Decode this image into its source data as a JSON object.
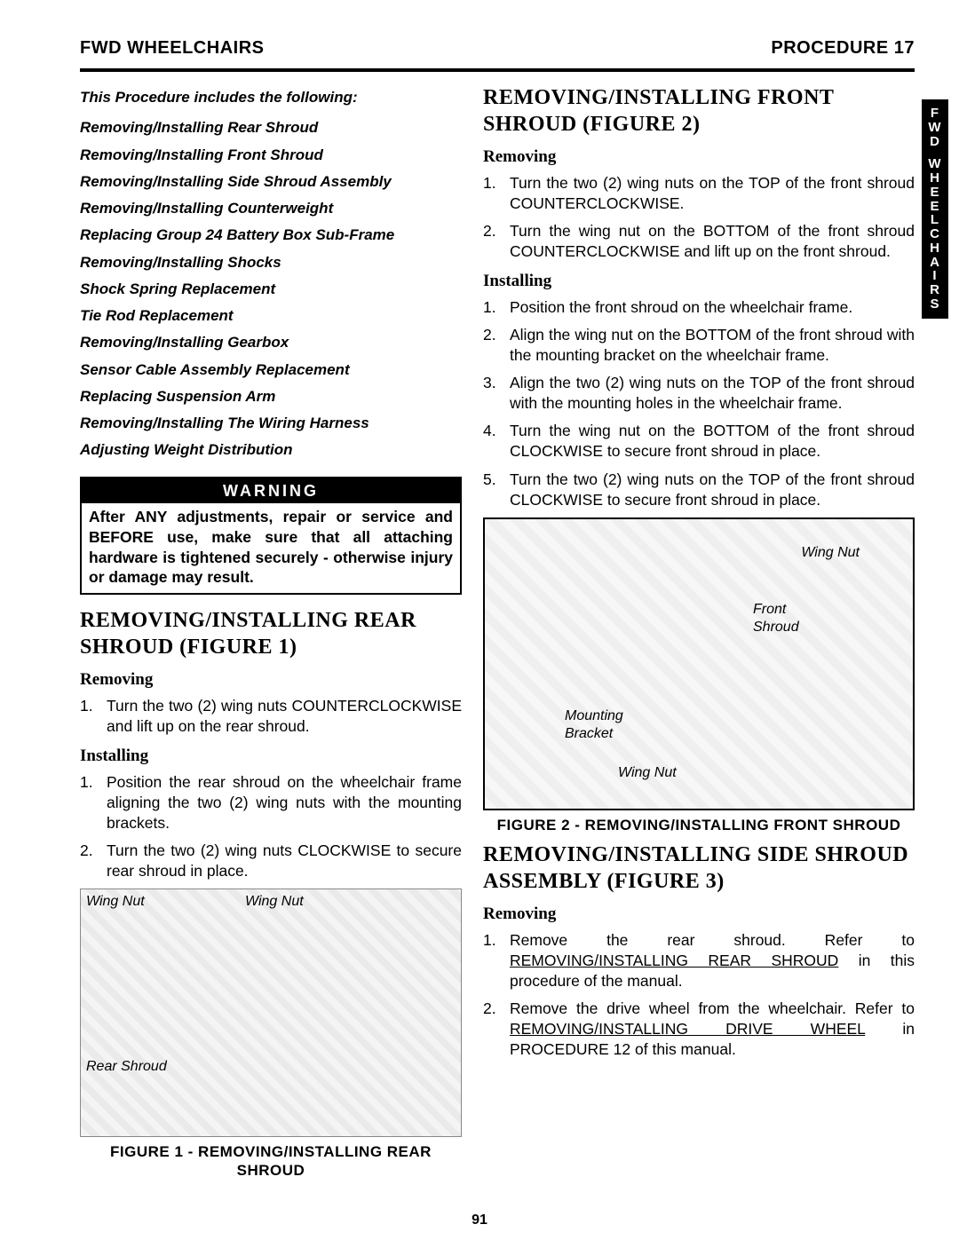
{
  "header": {
    "left": "Fwd Wheelchairs",
    "right": "Procedure 17"
  },
  "side_tab": {
    "line1": "FWD",
    "line2": "WHEELCHAIRS"
  },
  "toc": {
    "heading": "This Procedure includes the following:",
    "items": [
      "Removing/Installing Rear Shroud",
      "Removing/Installing Front Shroud",
      "Removing/Installing Side Shroud Assembly",
      "Removing/Installing Counterweight",
      "Replacing Group 24 Battery Box Sub-Frame",
      "Removing/Installing Shocks",
      "Shock Spring Replacement",
      "Tie Rod Replacement",
      "Removing/Installing Gearbox",
      "Sensor Cable Assembly Replacement",
      "Replacing Suspension Arm",
      "Removing/Installing The Wiring Harness",
      "Adjusting Weight Distribution"
    ]
  },
  "warning": {
    "title": "WARNING",
    "body": "After ANY adjustments, repair or service and BEFORE use, make sure that all attaching hardware is tightened securely - otherwise injury or damage may result."
  },
  "rear_shroud": {
    "title": "REMOVING/INSTALLING REAR SHROUD (FIGURE 1)",
    "removing_h": "Removing",
    "removing": [
      "Turn the two (2) wing nuts COUNTERCLOCKWISE and lift up on the rear shroud."
    ],
    "installing_h": "Installing",
    "installing": [
      "Position the rear shroud on the wheelchair frame aligning the two (2) wing nuts with the mounting brackets.",
      "Turn the two (2) wing nuts CLOCKWISE to secure rear shroud in place."
    ],
    "fig_caption": "FIGURE 1 - REMOVING/INSTALLING REAR SHROUD",
    "fig_labels": {
      "wing_nut_l": "Wing Nut",
      "wing_nut_r": "Wing Nut",
      "rear_shroud": "Rear Shroud"
    }
  },
  "front_shroud": {
    "title": "REMOVING/INSTALLING FRONT SHROUD (FIGURE 2)",
    "removing_h": "Removing",
    "removing": [
      "Turn the two (2) wing nuts on the TOP of the front shroud COUNTERCLOCKWISE.",
      "Turn the wing nut on the BOTTOM of the front shroud COUNTERCLOCKWISE and lift up on the front shroud."
    ],
    "installing_h": "Installing",
    "installing": [
      "Position the front shroud on the wheelchair frame.",
      "Align the wing nut on the BOTTOM of the front shroud with the mounting bracket on the wheelchair frame.",
      "Align the two (2) wing nuts on the TOP of the front shroud with the mounting holes in the wheelchair frame.",
      "Turn the wing nut on the BOTTOM of the front shroud CLOCKWISE to secure front shroud in place.",
      "Turn the two (2) wing nuts on the TOP of the front shroud CLOCKWISE to secure front shroud in place."
    ],
    "fig_caption": "FIGURE 2 - REMOVING/INSTALLING FRONT SHROUD",
    "fig_labels": {
      "wing_nut_top": "Wing Nut",
      "front_shroud": "Front Shroud",
      "mounting_bracket": "Mounting Bracket",
      "wing_nut_bottom": "Wing Nut"
    }
  },
  "side_shroud": {
    "title": "REMOVING/INSTALLING SIDE SHROUD ASSEMBLY (FIGURE 3)",
    "removing_h": "Removing",
    "removing_1_pre": "Remove the rear shroud. Refer to ",
    "removing_1_link": "REMOVING/INSTALLING REAR SHROUD",
    "removing_1_post": " in this procedure of the manual.",
    "removing_2_pre": "Remove the drive wheel from the wheelchair. Refer to ",
    "removing_2_link": "REMOVING/INSTALLING DRIVE WHEEL",
    "removing_2_post": " in PROCEDURE 12 of this manual."
  },
  "page_number": "91"
}
